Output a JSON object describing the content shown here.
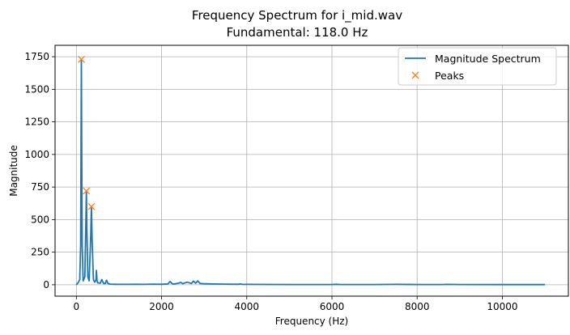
{
  "chart_data": {
    "type": "line",
    "title": "Frequency Spectrum for i_mid.wav",
    "subtitle": "Fundamental: 118.0 Hz",
    "xlabel": "Frequency (Hz)",
    "ylabel": "Magnitude",
    "xlim": [
      -500,
      11550
    ],
    "ylim": [
      -87.5,
      1837.5
    ],
    "xticks": [
      0,
      2000,
      4000,
      6000,
      8000,
      10000
    ],
    "yticks": [
      0,
      250,
      500,
      750,
      1000,
      1250,
      1500,
      1750
    ],
    "grid": true,
    "legend_position": "top-right",
    "series": [
      {
        "name": "Magnitude Spectrum",
        "kind": "line",
        "color": "#1f77b4",
        "x": [
          0,
          40,
          80,
          100,
          110,
          118,
          126,
          136,
          160,
          200,
          224,
          236,
          248,
          270,
          300,
          338,
          354,
          370,
          400,
          430,
          460,
          472,
          484,
          500,
          560,
          590,
          600,
          610,
          640,
          680,
          700,
          710,
          740,
          800,
          900,
          1000,
          1200,
          1400,
          1600,
          1800,
          2000,
          2150,
          2200,
          2250,
          2300,
          2400,
          2450,
          2500,
          2550,
          2600,
          2700,
          2750,
          2800,
          2850,
          2900,
          3000,
          3200,
          3500,
          3800,
          3850,
          3900,
          4000,
          5000,
          6000,
          6100,
          6200,
          7000,
          7500,
          8000,
          8600,
          8700,
          9000,
          10000,
          11000
        ],
        "y": [
          0,
          15,
          40,
          300,
          1100,
          1730,
          1100,
          300,
          30,
          60,
          500,
          720,
          400,
          60,
          30,
          380,
          600,
          330,
          40,
          20,
          35,
          110,
          35,
          15,
          12,
          35,
          40,
          30,
          10,
          10,
          30,
          35,
          10,
          5,
          4,
          3,
          3,
          4,
          3,
          5,
          4,
          6,
          25,
          8,
          6,
          12,
          18,
          8,
          15,
          20,
          10,
          28,
          12,
          30,
          10,
          8,
          6,
          5,
          4,
          6,
          3,
          3,
          2,
          2,
          4,
          2,
          2,
          3,
          2,
          2,
          3,
          2,
          1,
          1
        ]
      },
      {
        "name": "Peaks",
        "kind": "marker",
        "marker": "x",
        "color": "#ff7f0e",
        "x": [
          118,
          236,
          354
        ],
        "y": [
          1730,
          720,
          600
        ]
      }
    ]
  }
}
